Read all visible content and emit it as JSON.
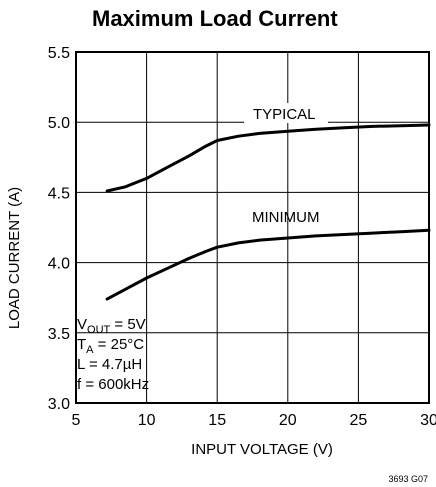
{
  "chart_data": {
    "type": "line",
    "title": "Maximum Load Current",
    "xlabel": "INPUT VOLTAGE (V)",
    "ylabel": "LOAD CURRENT (A)",
    "xlim": [
      5,
      30
    ],
    "ylim": [
      3.0,
      5.5
    ],
    "x_ticks": [
      "5",
      "10",
      "15",
      "20",
      "25",
      "30"
    ],
    "y_ticks": [
      "3.0",
      "3.5",
      "4.0",
      "4.5",
      "5.0",
      "5.5"
    ],
    "grid": true,
    "series": [
      {
        "name": "TYPICAL",
        "x": [
          7.2,
          8.5,
          10,
          11.5,
          13,
          14.2,
          15,
          16.5,
          18,
          20,
          22,
          24,
          26,
          28,
          30
        ],
        "y": [
          4.51,
          4.54,
          4.6,
          4.68,
          4.76,
          4.83,
          4.87,
          4.9,
          4.92,
          4.935,
          4.95,
          4.96,
          4.97,
          4.975,
          4.98
        ]
      },
      {
        "name": "MINIMUM",
        "x": [
          7.2,
          8.5,
          10,
          11.5,
          13,
          14.2,
          15,
          16.5,
          18,
          20,
          22,
          24,
          26,
          28,
          30
        ],
        "y": [
          3.74,
          3.81,
          3.89,
          3.96,
          4.03,
          4.08,
          4.11,
          4.14,
          4.16,
          4.175,
          4.19,
          4.2,
          4.21,
          4.22,
          4.23
        ]
      }
    ],
    "conditions": {
      "vout": {
        "main": "V",
        "sub": "OUT",
        "rest": " = 5V"
      },
      "ta": {
        "main": "T",
        "sub": "A",
        "rest": " = 25°C"
      },
      "l": "L = 4.7µH",
      "f": "f = 600kHz"
    },
    "figure_id": "3693 G07"
  }
}
